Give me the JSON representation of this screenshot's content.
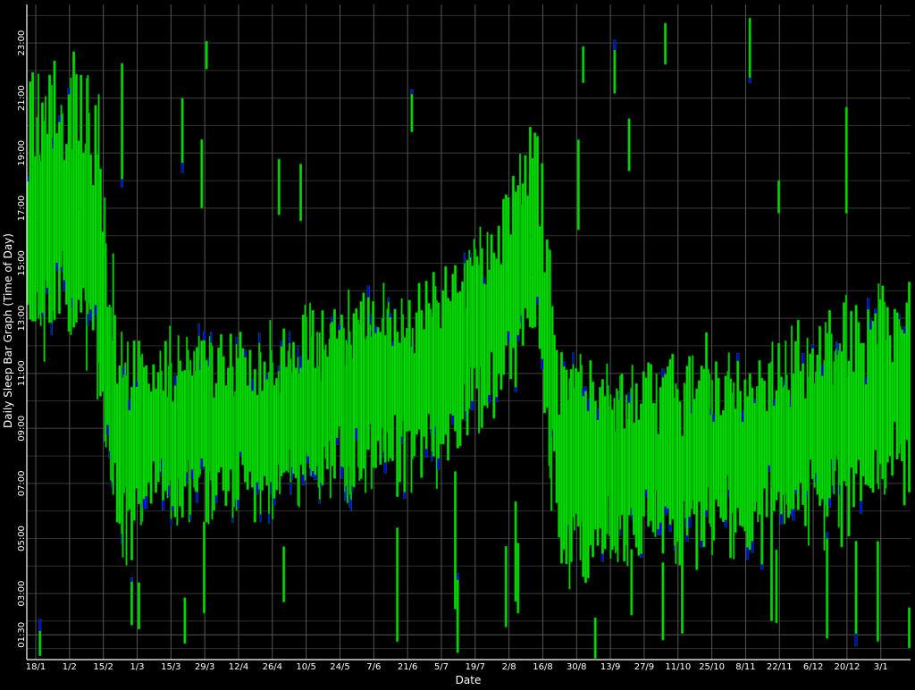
{
  "chart_data": {
    "type": "bar",
    "subtype": "floating-vertical-bars (sleep intervals per day)",
    "xlabel": "Date",
    "ylabel": "Daily Sleep Bar Graph (Time of Day)",
    "ylim": [
      0.6,
      24.4
    ],
    "grid": true,
    "colors": {
      "background": "#000000",
      "grid": "#555555",
      "axis": "#ffffff",
      "sleep_fill": "#00dd00",
      "sleep_edge": "#009900",
      "deep_fill": "#0000ee"
    },
    "x_tick_labels": [
      "18/1",
      "1/2",
      "15/2",
      "1/3",
      "15/3",
      "29/3",
      "12/4",
      "26/4",
      "10/5",
      "24/5",
      "7/6",
      "21/6",
      "5/7",
      "19/7",
      "2/8",
      "16/8",
      "30/8",
      "13/9",
      "27/9",
      "11/10",
      "25/10",
      "8/11",
      "22/11",
      "6/12",
      "20/12",
      "3/1"
    ],
    "y_ticks": [
      {
        "value": 1.5,
        "label": "01:30"
      },
      {
        "value": 3,
        "label": "03:00"
      },
      {
        "value": 5,
        "label": "05:00"
      },
      {
        "value": 7,
        "label": "07:00"
      },
      {
        "value": 9,
        "label": "09:00"
      },
      {
        "value": 11,
        "label": "11:00"
      },
      {
        "value": 13,
        "label": "13:00"
      },
      {
        "value": 15,
        "label": "15:00"
      },
      {
        "value": 17,
        "label": "17:00"
      },
      {
        "value": 19,
        "label": "19:00"
      },
      {
        "value": 21,
        "label": "21:00"
      },
      {
        "value": 23,
        "label": "23:00"
      }
    ],
    "trend": [
      {
        "day": 0,
        "mid": 16.5,
        "spread": 4.0
      },
      {
        "day": 14,
        "mid": 17.0,
        "spread": 4.5
      },
      {
        "day": 28,
        "mid": 16.0,
        "spread": 5.0
      },
      {
        "day": 38,
        "mid": 8.0,
        "spread": 3.5
      },
      {
        "day": 50,
        "mid": 8.8,
        "spread": 2.5
      },
      {
        "day": 100,
        "mid": 9.3,
        "spread": 2.4
      },
      {
        "day": 160,
        "mid": 10.5,
        "spread": 2.6
      },
      {
        "day": 195,
        "mid": 13.5,
        "spread": 3.0
      },
      {
        "day": 210,
        "mid": 16.5,
        "spread": 3.5
      },
      {
        "day": 220,
        "mid": 8.0,
        "spread": 3.5
      },
      {
        "day": 240,
        "mid": 7.5,
        "spread": 2.5
      },
      {
        "day": 300,
        "mid": 8.3,
        "spread": 2.8
      },
      {
        "day": 340,
        "mid": 9.3,
        "spread": 3.0
      },
      {
        "day": 365,
        "mid": 10.5,
        "spread": 3.2
      }
    ],
    "days": 366,
    "seed": 20240118
  }
}
